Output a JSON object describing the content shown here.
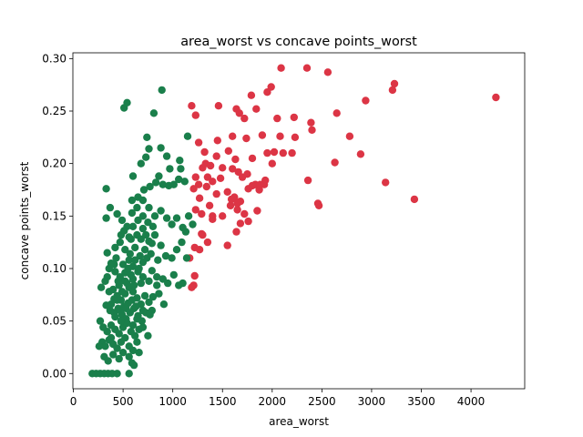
{
  "chart_data": {
    "type": "scatter",
    "title": "area_worst vs concave points_worst",
    "xlabel": "area_worst",
    "ylabel": "concave points_worst",
    "xlim": [
      -5,
      4540
    ],
    "ylim": [
      -0.0145,
      0.3055
    ],
    "xticks": [
      0,
      500,
      1000,
      1500,
      2000,
      2500,
      3000,
      3500,
      4000
    ],
    "yticks": [
      0.0,
      0.05,
      0.1,
      0.15,
      0.2,
      0.25,
      0.3
    ],
    "grid": false,
    "legend": "none",
    "series": [
      {
        "color": "#dc3545",
        "points": [
          [
            2090,
            0.291
          ],
          [
            2350,
            0.291
          ],
          [
            2560,
            0.287
          ],
          [
            1990,
            0.273
          ],
          [
            1950,
            0.268
          ],
          [
            3230,
            0.276
          ],
          [
            3210,
            0.27
          ],
          [
            2940,
            0.26
          ],
          [
            4250,
            0.263
          ],
          [
            1790,
            0.265
          ],
          [
            1840,
            0.252
          ],
          [
            1460,
            0.255
          ],
          [
            1190,
            0.255
          ],
          [
            1640,
            0.252
          ],
          [
            1670,
            0.248
          ],
          [
            1720,
            0.243
          ],
          [
            1230,
            0.246
          ],
          [
            2050,
            0.243
          ],
          [
            2220,
            0.244
          ],
          [
            2390,
            0.239
          ],
          [
            2650,
            0.248
          ],
          [
            2400,
            0.232
          ],
          [
            2080,
            0.226
          ],
          [
            1600,
            0.226
          ],
          [
            1740,
            0.224
          ],
          [
            1450,
            0.222
          ],
          [
            1260,
            0.22
          ],
          [
            1900,
            0.227
          ],
          [
            2200,
            0.21
          ],
          [
            2110,
            0.21
          ],
          [
            2230,
            0.225
          ],
          [
            2780,
            0.226
          ],
          [
            2890,
            0.209
          ],
          [
            2630,
            0.201
          ],
          [
            1320,
            0.211
          ],
          [
            1440,
            0.207
          ],
          [
            1560,
            0.212
          ],
          [
            1630,
            0.204
          ],
          [
            1800,
            0.205
          ],
          [
            2020,
            0.211
          ],
          [
            1950,
            0.21
          ],
          [
            1300,
            0.196
          ],
          [
            1330,
            0.2
          ],
          [
            1380,
            0.198
          ],
          [
            1500,
            0.196
          ],
          [
            1230,
            0.187
          ],
          [
            1260,
            0.18
          ],
          [
            1350,
            0.187
          ],
          [
            1400,
            0.183
          ],
          [
            1480,
            0.186
          ],
          [
            1600,
            0.195
          ],
          [
            1660,
            0.192
          ],
          [
            1700,
            0.187
          ],
          [
            1750,
            0.19
          ],
          [
            1830,
            0.18
          ],
          [
            1870,
            0.175
          ],
          [
            1930,
            0.184
          ],
          [
            2000,
            0.2
          ],
          [
            1920,
            0.18
          ],
          [
            1210,
            0.176
          ],
          [
            1270,
            0.167
          ],
          [
            1340,
            0.178
          ],
          [
            1440,
            0.171
          ],
          [
            1550,
            0.173
          ],
          [
            1620,
            0.168
          ],
          [
            1680,
            0.164
          ],
          [
            1760,
            0.176
          ],
          [
            1800,
            0.179
          ],
          [
            1880,
            0.18
          ],
          [
            2460,
            0.162
          ],
          [
            2470,
            0.16
          ],
          [
            2360,
            0.184
          ],
          [
            3140,
            0.182
          ],
          [
            3430,
            0.166
          ],
          [
            1230,
            0.156
          ],
          [
            1290,
            0.152
          ],
          [
            1370,
            0.16
          ],
          [
            1400,
            0.15
          ],
          [
            1500,
            0.15
          ],
          [
            1580,
            0.16
          ],
          [
            1650,
            0.156
          ],
          [
            1720,
            0.152
          ],
          [
            1760,
            0.145
          ],
          [
            1850,
            0.155
          ],
          [
            1680,
            0.143
          ],
          [
            1640,
            0.135
          ],
          [
            1550,
            0.122
          ],
          [
            1400,
            0.147
          ],
          [
            1290,
            0.133
          ],
          [
            1220,
            0.12
          ],
          [
            1170,
            0.11
          ],
          [
            1270,
            0.118
          ],
          [
            1300,
            0.132
          ],
          [
            1350,
            0.125
          ],
          [
            1210,
            0.084
          ],
          [
            1190,
            0.082
          ],
          [
            1220,
            0.093
          ],
          [
            1650,
            0.162
          ],
          [
            1590,
            0.166
          ]
        ]
      },
      {
        "color": "#1a7f4b",
        "points": [
          [
            540,
            0.258
          ],
          [
            510,
            0.253
          ],
          [
            890,
            0.27
          ],
          [
            810,
            0.248
          ],
          [
            740,
            0.225
          ],
          [
            760,
            0.214
          ],
          [
            730,
            0.206
          ],
          [
            880,
            0.215
          ],
          [
            940,
            0.207
          ],
          [
            1070,
            0.203
          ],
          [
            1150,
            0.226
          ],
          [
            1080,
            0.195
          ],
          [
            970,
            0.195
          ],
          [
            860,
            0.188
          ],
          [
            680,
            0.2
          ],
          [
            600,
            0.188
          ],
          [
            590,
            0.165
          ],
          [
            650,
            0.168
          ],
          [
            710,
            0.175
          ],
          [
            770,
            0.178
          ],
          [
            830,
            0.182
          ],
          [
            900,
            0.18
          ],
          [
            960,
            0.179
          ],
          [
            1010,
            0.18
          ],
          [
            1060,
            0.185
          ],
          [
            1120,
            0.183
          ],
          [
            330,
            0.176
          ],
          [
            330,
            0.148
          ],
          [
            370,
            0.158
          ],
          [
            440,
            0.152
          ],
          [
            490,
            0.146
          ],
          [
            540,
            0.14
          ],
          [
            590,
            0.153
          ],
          [
            640,
            0.158
          ],
          [
            700,
            0.165
          ],
          [
            760,
            0.158
          ],
          [
            820,
            0.15
          ],
          [
            880,
            0.155
          ],
          [
            940,
            0.148
          ],
          [
            990,
            0.142
          ],
          [
            1040,
            0.148
          ],
          [
            1100,
            0.139
          ],
          [
            1130,
            0.135
          ],
          [
            1160,
            0.15
          ],
          [
            1200,
            0.142
          ],
          [
            420,
            0.12
          ],
          [
            470,
            0.125
          ],
          [
            520,
            0.118
          ],
          [
            580,
            0.128
          ],
          [
            640,
            0.132
          ],
          [
            700,
            0.138
          ],
          [
            760,
            0.126
          ],
          [
            820,
            0.132
          ],
          [
            880,
            0.122
          ],
          [
            930,
            0.112
          ],
          [
            990,
            0.11
          ],
          [
            1040,
            0.118
          ],
          [
            1090,
            0.125
          ],
          [
            1140,
            0.11
          ],
          [
            480,
            0.132
          ],
          [
            340,
            0.115
          ],
          [
            380,
            0.105
          ],
          [
            420,
            0.097
          ],
          [
            470,
            0.092
          ],
          [
            520,
            0.096
          ],
          [
            560,
            0.108
          ],
          [
            600,
            0.102
          ],
          [
            650,
            0.097
          ],
          [
            700,
            0.106
          ],
          [
            740,
            0.11
          ],
          [
            790,
            0.098
          ],
          [
            840,
            0.092
          ],
          [
            900,
            0.09
          ],
          [
            950,
            0.086
          ],
          [
            1010,
            0.094
          ],
          [
            1060,
            0.084
          ],
          [
            1100,
            0.086
          ],
          [
            280,
            0.082
          ],
          [
            320,
            0.088
          ],
          [
            360,
            0.078
          ],
          [
            400,
            0.08
          ],
          [
            440,
            0.074
          ],
          [
            480,
            0.07
          ],
          [
            520,
            0.076
          ],
          [
            560,
            0.082
          ],
          [
            600,
            0.078
          ],
          [
            640,
            0.072
          ],
          [
            680,
            0.066
          ],
          [
            720,
            0.074
          ],
          [
            760,
            0.068
          ],
          [
            800,
            0.073
          ],
          [
            860,
            0.076
          ],
          [
            910,
            0.066
          ],
          [
            330,
            0.065
          ],
          [
            370,
            0.06
          ],
          [
            410,
            0.058
          ],
          [
            450,
            0.062
          ],
          [
            490,
            0.056
          ],
          [
            530,
            0.052
          ],
          [
            570,
            0.058
          ],
          [
            610,
            0.062
          ],
          [
            650,
            0.055
          ],
          [
            690,
            0.05
          ],
          [
            730,
            0.058
          ],
          [
            790,
            0.06
          ],
          [
            270,
            0.05
          ],
          [
            300,
            0.044
          ],
          [
            340,
            0.04
          ],
          [
            380,
            0.046
          ],
          [
            420,
            0.042
          ],
          [
            460,
            0.038
          ],
          [
            500,
            0.044
          ],
          [
            540,
            0.048
          ],
          [
            580,
            0.04
          ],
          [
            620,
            0.036
          ],
          [
            660,
            0.042
          ],
          [
            290,
            0.03
          ],
          [
            320,
            0.026
          ],
          [
            360,
            0.032
          ],
          [
            400,
            0.028
          ],
          [
            440,
            0.024
          ],
          [
            480,
            0.03
          ],
          [
            520,
            0.034
          ],
          [
            560,
            0.026
          ],
          [
            600,
            0.022
          ],
          [
            640,
            0.03
          ],
          [
            260,
            0.026
          ],
          [
            310,
            0.016
          ],
          [
            350,
            0.012
          ],
          [
            400,
            0.018
          ],
          [
            460,
            0.014
          ],
          [
            500,
            0.02
          ],
          [
            560,
            0.016
          ],
          [
            610,
            0.008
          ],
          [
            660,
            0.02
          ],
          [
            190,
            0.0
          ],
          [
            230,
            0.0
          ],
          [
            270,
            0.0
          ],
          [
            310,
            0.0
          ],
          [
            350,
            0.0
          ],
          [
            390,
            0.0
          ],
          [
            440,
            0.0
          ],
          [
            560,
            0.0
          ],
          [
            590,
            0.01
          ],
          [
            380,
            0.066
          ],
          [
            460,
            0.084
          ],
          [
            520,
            0.088
          ],
          [
            600,
            0.09
          ],
          [
            680,
            0.086
          ],
          [
            760,
            0.088
          ],
          [
            840,
            0.084
          ],
          [
            410,
            0.071
          ],
          [
            550,
            0.067
          ],
          [
            630,
            0.064
          ],
          [
            700,
            0.06
          ],
          [
            770,
            0.056
          ],
          [
            430,
            0.11
          ],
          [
            500,
            0.104
          ],
          [
            570,
            0.114
          ],
          [
            620,
            0.12
          ],
          [
            670,
            0.112
          ],
          [
            720,
            0.118
          ],
          [
            780,
            0.114
          ],
          [
            850,
            0.108
          ],
          [
            470,
            0.06
          ],
          [
            510,
            0.064
          ],
          [
            590,
            0.07
          ],
          [
            640,
            0.052
          ],
          [
            480,
            0.05
          ],
          [
            600,
            0.046
          ],
          [
            700,
            0.044
          ],
          [
            750,
            0.036
          ],
          [
            380,
            0.034
          ],
          [
            420,
            0.054
          ],
          [
            540,
            0.086
          ],
          [
            580,
            0.094
          ],
          [
            660,
            0.1
          ],
          [
            510,
            0.136
          ],
          [
            560,
            0.13
          ],
          [
            600,
            0.14
          ],
          [
            650,
            0.146
          ],
          [
            700,
            0.15
          ],
          [
            750,
            0.144
          ],
          [
            800,
            0.14
          ],
          [
            680,
            0.128
          ],
          [
            730,
            0.132
          ],
          [
            790,
            0.124
          ],
          [
            620,
            0.108
          ],
          [
            700,
            0.092
          ],
          [
            550,
            0.1
          ],
          [
            450,
            0.088
          ],
          [
            340,
            0.092
          ],
          [
            360,
            0.1
          ],
          [
            410,
            0.104
          ],
          [
            440,
            0.07
          ],
          [
            490,
            0.078
          ],
          [
            530,
            0.062
          ],
          [
            610,
            0.084
          ]
        ]
      }
    ]
  }
}
